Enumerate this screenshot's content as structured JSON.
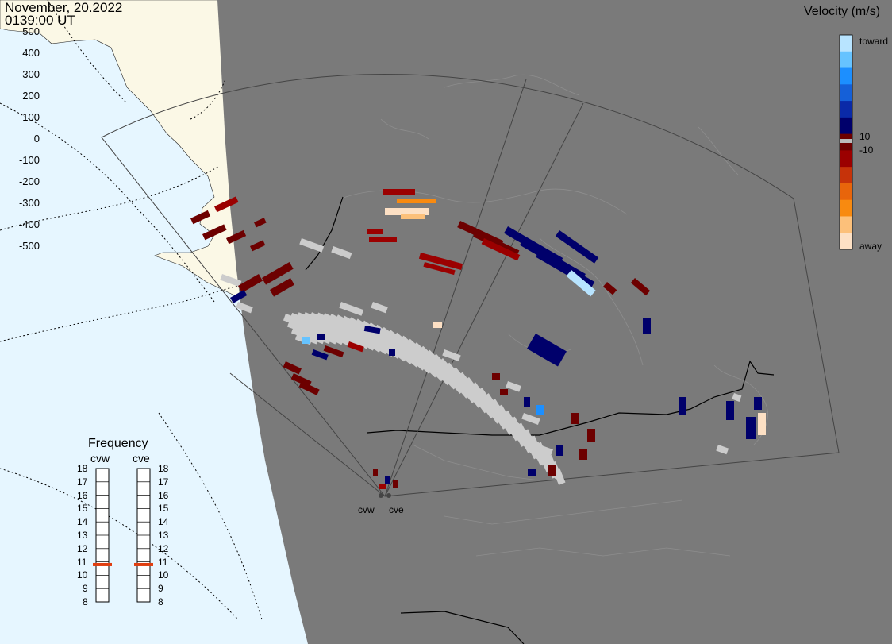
{
  "header": {
    "date": "November, 20.2022",
    "time": "0139:00 UT"
  },
  "legend": {
    "title": "Velocity (m/s)",
    "ticks": [
      "500",
      "400",
      "300",
      "200",
      "100",
      "0",
      "-100",
      "-200",
      "-300",
      "-400",
      "-500"
    ],
    "toward_label": "toward",
    "away_label": "away",
    "inner_pos_label": "10",
    "inner_neg_label": "-10",
    "colors": [
      "#fde0c4",
      "#fcc07a",
      "#f88a10",
      "#e8650b",
      "#c6330a",
      "#9b0000",
      "#6d0000",
      "#00006b",
      "#0a2aa8",
      "#1560d8",
      "#1c8fff",
      "#66c3ff",
      "#b8e4ff"
    ]
  },
  "frequency_panel": {
    "title": "Frequency",
    "radars": [
      {
        "name": "cvw",
        "value": 11
      },
      {
        "name": "cve",
        "value": 11
      }
    ],
    "ticks": [
      "18",
      "17",
      "16",
      "15",
      "14",
      "13",
      "12",
      "11",
      "10",
      "9",
      "8"
    ],
    "marker_color": "#e03e10"
  },
  "map": {
    "radar_sites": [
      "cvw",
      "cve"
    ],
    "ocean_color": "#e6f6ff",
    "land_day_color": "#fbf8e6",
    "night_color": "#7a7a7a",
    "ground_scatter_color": "#cccccc"
  }
}
